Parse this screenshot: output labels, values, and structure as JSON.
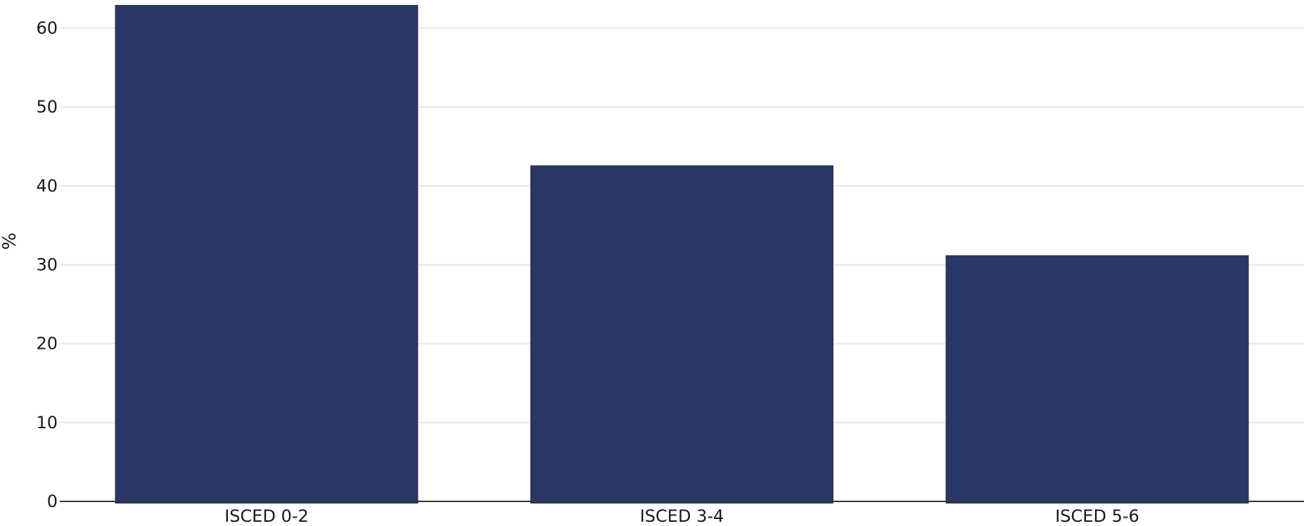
{
  "chart_data": {
    "type": "bar",
    "title": "",
    "xlabel": "",
    "ylabel": "%",
    "categories": [
      "ISCED 0-2",
      "ISCED 3-4",
      "ISCED 5-6"
    ],
    "values": [
      63.0,
      42.6,
      31.2
    ],
    "ylim": [
      0,
      63
    ],
    "yticks": [
      0,
      10,
      20,
      30,
      40,
      50,
      60
    ],
    "grid": true,
    "legend": "none",
    "bar_color": "#2a3663"
  }
}
